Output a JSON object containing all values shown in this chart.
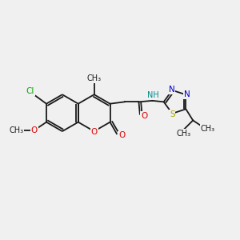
{
  "bg_color": "#f0f0f0",
  "bond_color": "#1a1a1a",
  "bond_lw": 1.3,
  "atom_colors": {
    "C": "#1a1a1a",
    "O": "#dd0000",
    "N": "#0000cc",
    "S": "#aaaa00",
    "Cl": "#00aa00",
    "H": "#008888",
    "black": "#1a1a1a"
  },
  "font_size": 7.5,
  "fig_bg": "#f0f0f0",
  "xlim": [
    0,
    10
  ],
  "ylim": [
    0,
    10
  ]
}
